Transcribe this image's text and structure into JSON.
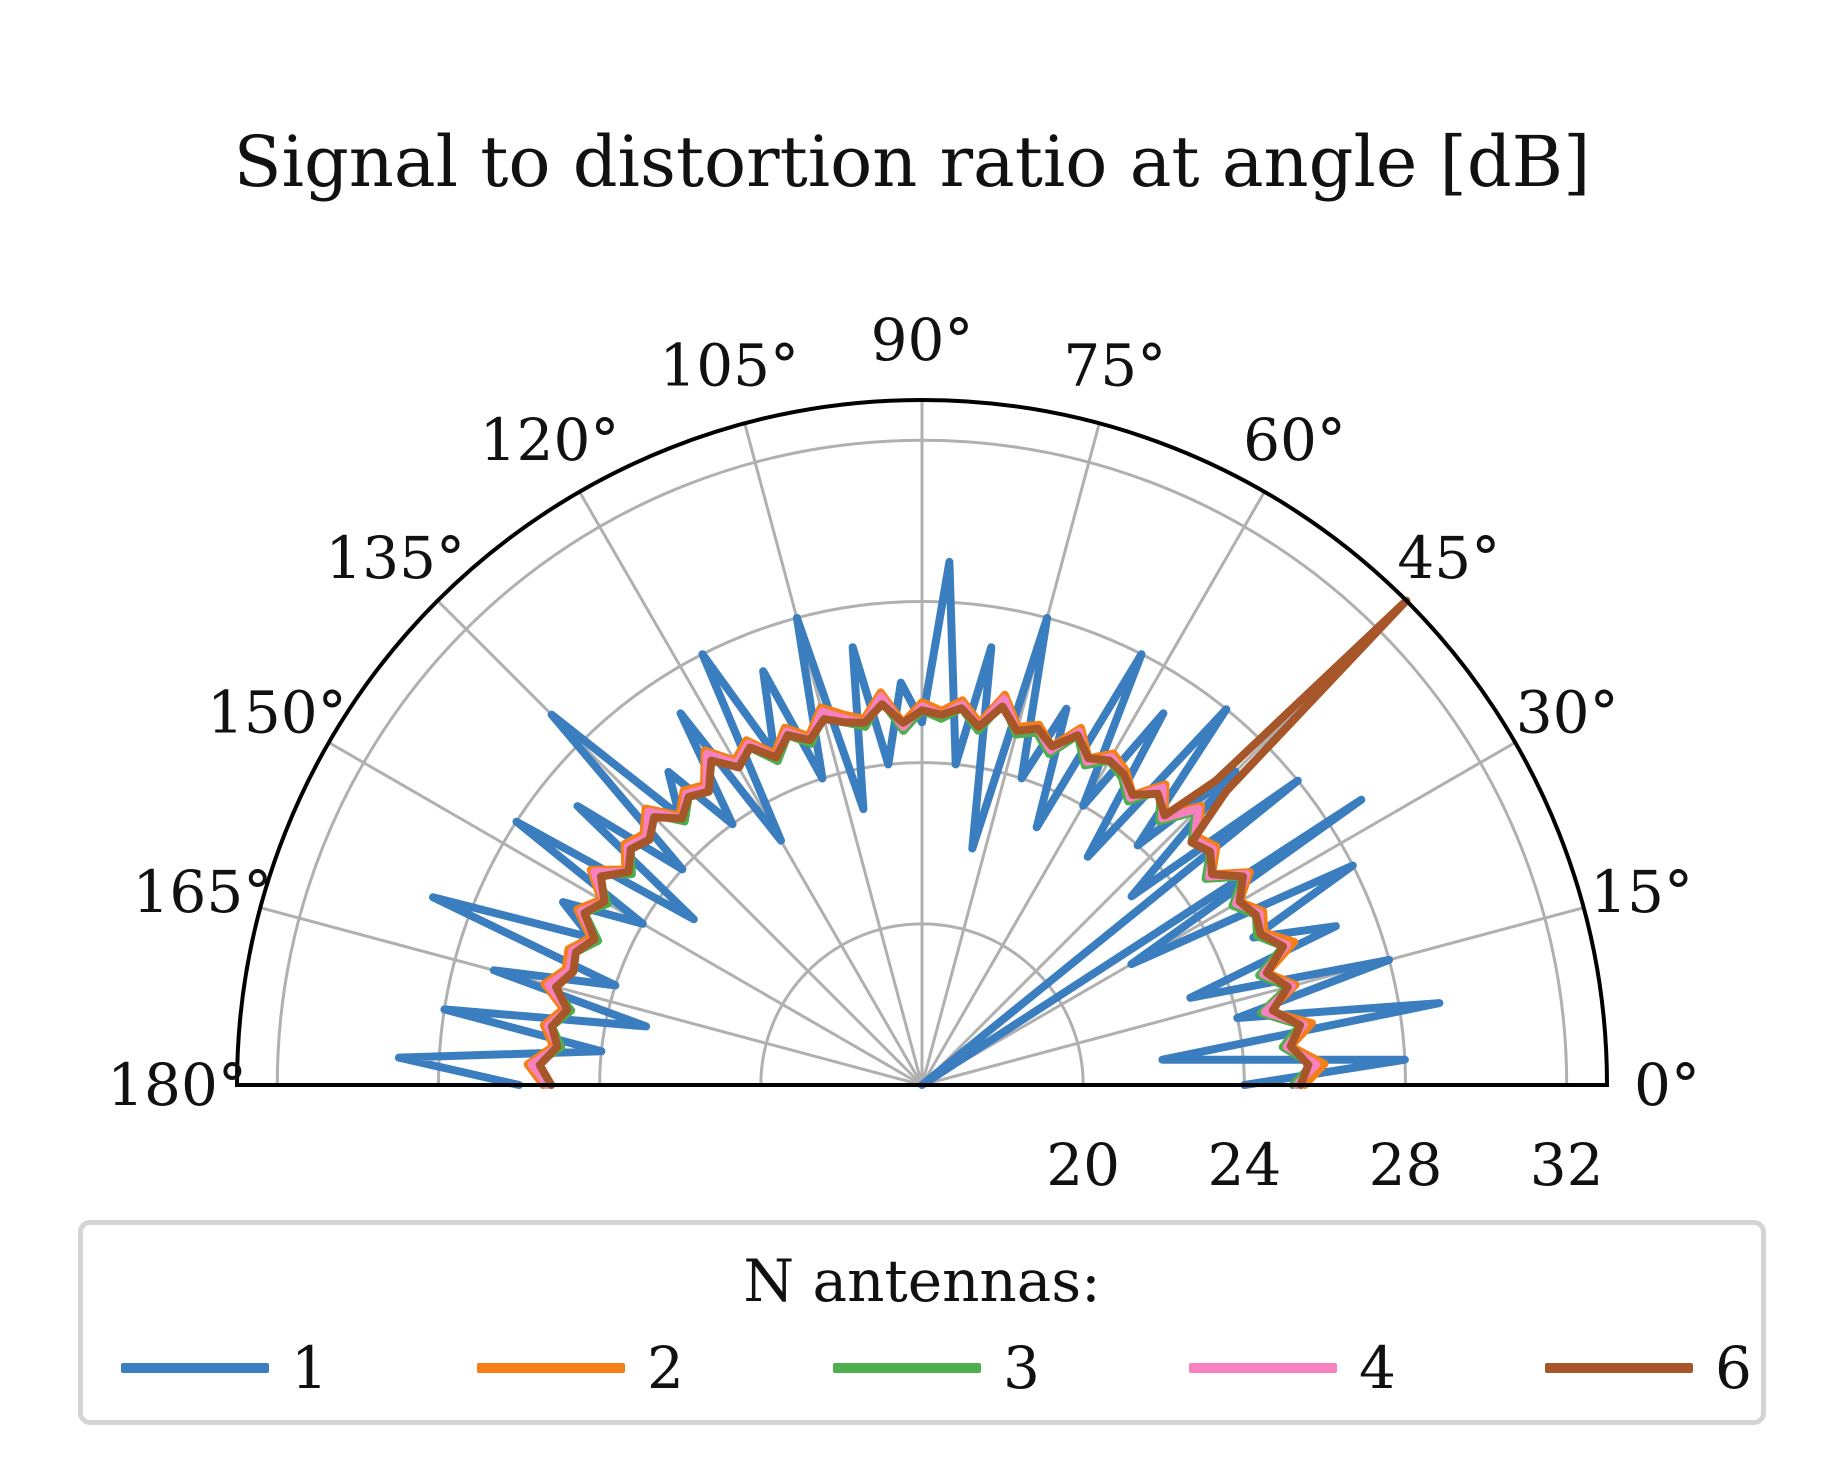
{
  "chart_data": {
    "type": "polar-line",
    "title": "Signal to distortion ratio at angle [dB]",
    "theta_range_deg": [
      0,
      180
    ],
    "r_range": [
      16,
      33
    ],
    "angle_ticks": [
      "0°",
      "15°",
      "30°",
      "45°",
      "60°",
      "75°",
      "90°",
      "105°",
      "120°",
      "135°",
      "150°",
      "165°",
      "180°"
    ],
    "radial_ticks": [
      "20",
      "24",
      "28",
      "32"
    ],
    "grid": true,
    "legend": {
      "title": "N antennas:",
      "position": "bottom",
      "columns": 5
    },
    "series": [
      {
        "name": "1",
        "color": "#3a7ebf",
        "theta_deg": [
          0,
          3,
          6,
          9,
          12,
          15,
          18,
          21,
          24,
          27,
          30,
          33,
          36,
          39,
          42,
          45,
          48,
          51,
          54,
          57,
          60,
          63,
          66,
          69,
          72,
          75,
          78,
          81,
          84,
          87,
          90,
          93,
          96,
          99,
          102,
          105,
          108,
          111,
          114,
          117,
          120,
          123,
          126,
          129,
          132,
          135,
          138,
          141,
          144,
          147,
          150,
          153,
          156,
          159,
          162,
          165,
          168,
          171,
          174,
          177,
          180
        ],
        "values": [
          24,
          28,
          22,
          29,
          24,
          28,
          23,
          27,
          25,
          28,
          22,
          29,
          16,
          28,
          23,
          27,
          24,
          28,
          23,
          27,
          24,
          28,
          23,
          26,
          24,
          28,
          22,
          27,
          24,
          29,
          25,
          26,
          24,
          27,
          23,
          28,
          24,
          27,
          25,
          28,
          23,
          27,
          24,
          26,
          25,
          29,
          24,
          27,
          23,
          28,
          24,
          26,
          25,
          29,
          24,
          27,
          23,
          28,
          24,
          29,
          26
        ]
      },
      {
        "name": "2",
        "color": "#f57f17",
        "theta_deg": [
          0,
          3,
          6,
          9,
          12,
          15,
          18,
          21,
          24,
          27,
          30,
          33,
          36,
          39,
          42,
          45,
          48,
          51,
          54,
          57,
          60,
          63,
          66,
          69,
          72,
          75,
          78,
          81,
          84,
          87,
          90,
          93,
          96,
          99,
          102,
          105,
          108,
          111,
          114,
          117,
          120,
          123,
          126,
          129,
          132,
          135,
          138,
          141,
          144,
          147,
          150,
          153,
          156,
          159,
          162,
          165,
          168,
          171,
          174,
          177,
          180
        ],
        "values": [
          25.5,
          26.0,
          25.2,
          25.8,
          24.8,
          25.6,
          25.0,
          25.9,
          25.3,
          25.5,
          25.1,
          25.7,
          24.9,
          25.4,
          25.2,
          25.8,
          25.0,
          25.6,
          24.9,
          25.3,
          25.5,
          25.1,
          25.7,
          25.0,
          25.4,
          25.2,
          25.9,
          25.1,
          25.6,
          25.3,
          25.5,
          25.0,
          25.8,
          25.2,
          25.4,
          25.7,
          25.1,
          25.5,
          25.0,
          25.6,
          25.3,
          25.9,
          25.2,
          25.4,
          25.0,
          25.7,
          25.3,
          25.5,
          25.1,
          25.8,
          25.2,
          25.6,
          25.0,
          25.4,
          25.3,
          25.7,
          25.1,
          25.5,
          25.2,
          25.8,
          25.4
        ]
      },
      {
        "name": "3",
        "color": "#4cae4c",
        "theta_deg": [
          0,
          3,
          6,
          9,
          12,
          15,
          18,
          21,
          24,
          27,
          30,
          33,
          36,
          39,
          42,
          45,
          48,
          51,
          54,
          57,
          60,
          63,
          66,
          69,
          72,
          75,
          78,
          81,
          84,
          87,
          90,
          93,
          96,
          99,
          102,
          105,
          108,
          111,
          114,
          117,
          120,
          123,
          126,
          129,
          132,
          135,
          138,
          141,
          144,
          147,
          150,
          153,
          156,
          159,
          162,
          165,
          168,
          171,
          174,
          177,
          180
        ],
        "values": [
          25.2,
          25.7,
          25.0,
          25.5,
          24.6,
          25.4,
          24.8,
          25.6,
          25.1,
          25.3,
          24.9,
          25.5,
          24.7,
          25.2,
          25.0,
          25.6,
          24.8,
          25.4,
          24.7,
          25.1,
          25.3,
          24.9,
          25.5,
          24.8,
          25.2,
          25.0,
          25.7,
          24.9,
          25.4,
          25.1,
          25.3,
          24.8,
          25.6,
          25.0,
          25.2,
          25.5,
          24.9,
          25.3,
          24.8,
          25.4,
          25.1,
          25.7,
          25.0,
          25.2,
          24.8,
          25.5,
          25.1,
          25.3,
          24.9,
          25.6,
          25.0,
          25.4,
          24.8,
          25.2,
          25.1,
          25.5,
          24.9,
          25.3,
          25.0,
          25.6,
          25.2
        ]
      },
      {
        "name": "4",
        "color": "#f781bf",
        "theta_deg": [
          0,
          3,
          6,
          9,
          12,
          15,
          18,
          21,
          24,
          27,
          30,
          33,
          36,
          39,
          42,
          45,
          48,
          51,
          54,
          57,
          60,
          63,
          66,
          69,
          72,
          75,
          78,
          81,
          84,
          87,
          90,
          93,
          96,
          99,
          102,
          105,
          108,
          111,
          114,
          117,
          120,
          123,
          126,
          129,
          132,
          135,
          138,
          141,
          144,
          147,
          150,
          153,
          156,
          159,
          162,
          165,
          168,
          171,
          174,
          177,
          180
        ],
        "values": [
          25.3,
          25.8,
          25.1,
          25.6,
          24.7,
          25.5,
          24.9,
          25.7,
          25.2,
          25.4,
          25.0,
          25.6,
          24.8,
          25.3,
          25.1,
          25.7,
          24.9,
          25.5,
          24.8,
          25.2,
          25.4,
          25.0,
          25.6,
          24.9,
          25.3,
          25.1,
          25.8,
          25.0,
          25.5,
          25.2,
          25.4,
          24.9,
          25.7,
          25.1,
          25.3,
          25.6,
          25.0,
          25.4,
          24.9,
          25.5,
          25.2,
          25.8,
          25.1,
          25.3,
          24.9,
          25.6,
          25.2,
          25.4,
          25.0,
          25.7,
          25.1,
          25.5,
          24.9,
          25.3,
          25.2,
          25.6,
          25.0,
          25.4,
          25.1,
          25.7,
          25.3
        ]
      },
      {
        "name": "6",
        "color": "#a65628",
        "theta_deg": [
          0,
          3,
          6,
          9,
          12,
          15,
          18,
          21,
          24,
          27,
          30,
          33,
          36,
          39,
          42,
          44,
          45,
          46,
          48,
          51,
          54,
          57,
          60,
          63,
          66,
          69,
          72,
          75,
          78,
          81,
          84,
          87,
          90,
          93,
          96,
          99,
          102,
          105,
          108,
          111,
          114,
          117,
          120,
          123,
          126,
          129,
          132,
          135,
          138,
          141,
          144,
          147,
          150,
          153,
          156,
          159,
          162,
          165,
          168,
          171,
          174,
          177,
          180
        ],
        "values": [
          25.4,
          25.6,
          25.2,
          25.5,
          24.9,
          25.4,
          25.0,
          25.6,
          25.2,
          25.3,
          25.1,
          25.5,
          24.9,
          25.2,
          25.0,
          26.5,
          33.0,
          26.5,
          25.0,
          25.3,
          24.9,
          25.2,
          25.3,
          25.1,
          25.5,
          25.0,
          25.3,
          25.1,
          25.6,
          25.0,
          25.4,
          25.2,
          25.3,
          25.0,
          25.5,
          25.1,
          25.2,
          25.4,
          25.0,
          25.3,
          24.9,
          25.4,
          25.1,
          25.6,
          25.0,
          25.2,
          24.9,
          25.4,
          25.1,
          25.3,
          25.0,
          25.5,
          25.1,
          25.4,
          24.9,
          25.2,
          25.1,
          25.4,
          25.0,
          25.3,
          25.1,
          25.5,
          25.2
        ]
      }
    ]
  }
}
